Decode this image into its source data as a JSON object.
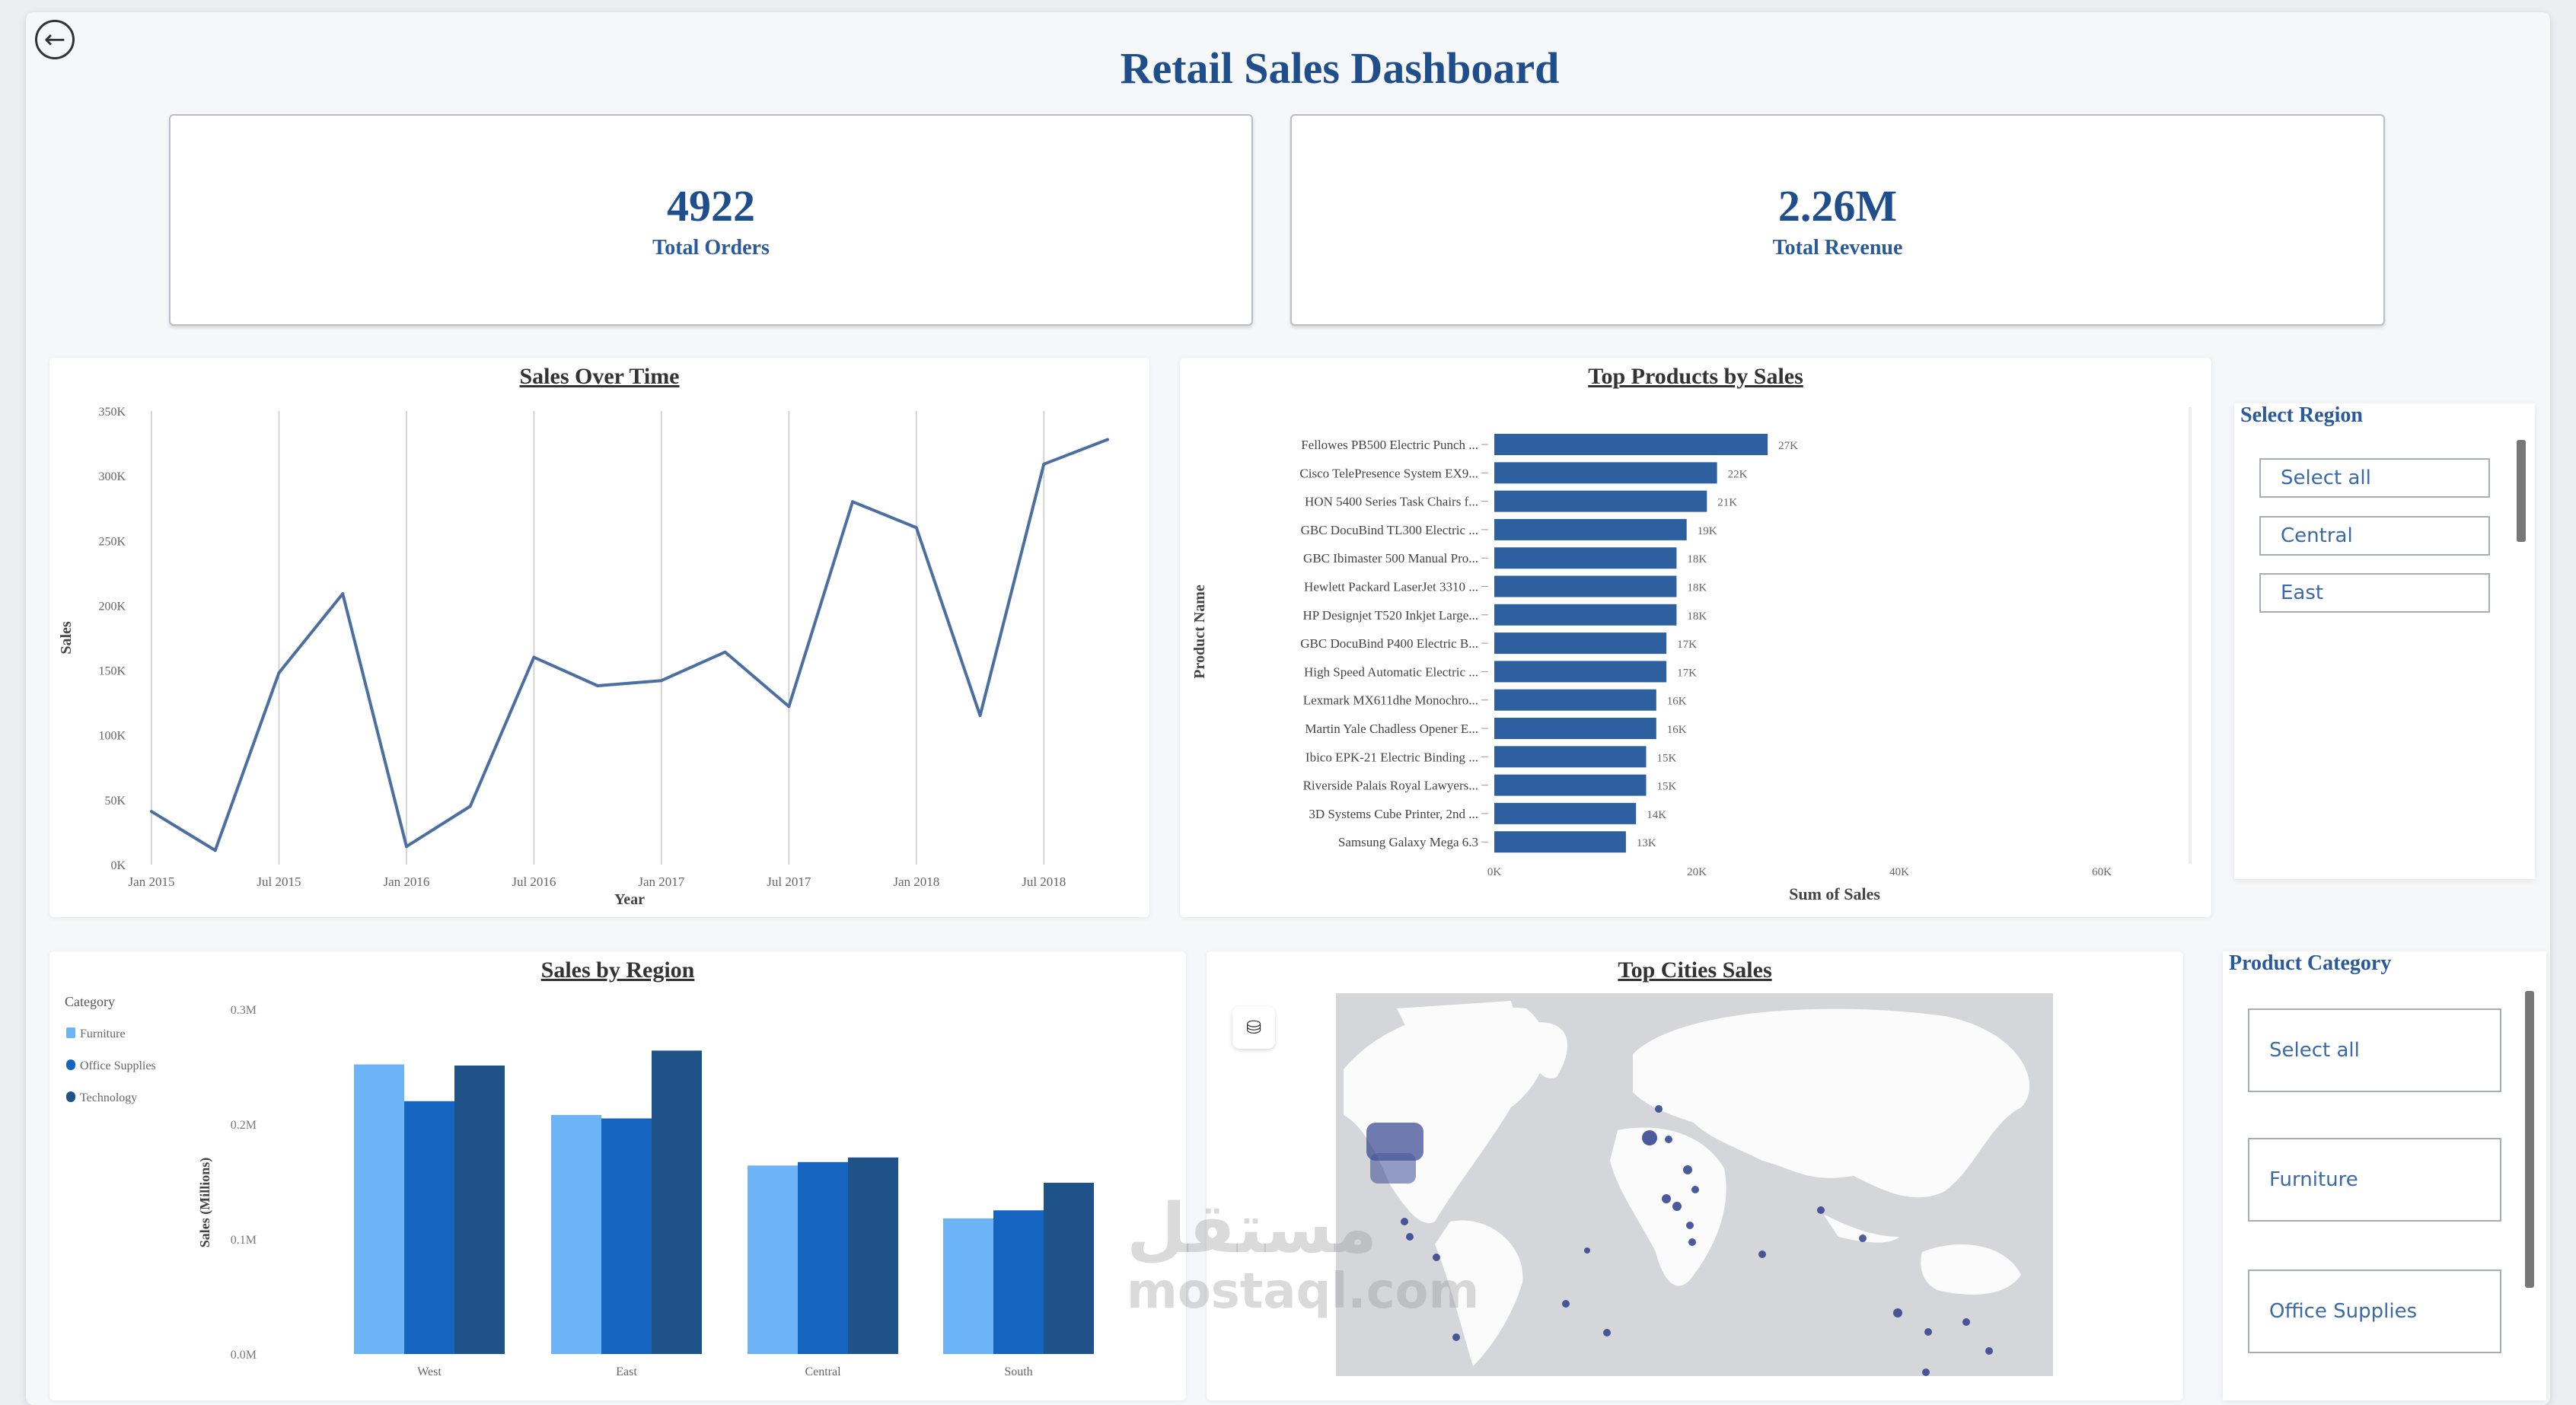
{
  "header": {
    "title": "Retail Sales Dashboard",
    "back_icon": "back-arrow-icon"
  },
  "kpis": [
    {
      "value": "4922",
      "label": "Total Orders"
    },
    {
      "value": "2.26M",
      "label": "Total Revenue"
    }
  ],
  "colors": {
    "accent": "#1f4e8c",
    "line": "#4a6fa0",
    "bar": "#2e5f9e",
    "furniture": "#6cb4f5",
    "office_supplies": "#1565c0",
    "technology": "#1f5288"
  },
  "slicers": {
    "region": {
      "title": "Select Region",
      "items": [
        "Select all",
        "Central",
        "East"
      ]
    },
    "category": {
      "title": "Product Category",
      "items": [
        "Select all",
        "Furniture",
        "Office Supplies"
      ]
    }
  },
  "map": {
    "title": "Top Cities Sales",
    "icon": "map-layer-icon"
  },
  "watermark": {
    "text": "mostaql.com",
    "arabic": "مستقل"
  },
  "chart_data": [
    {
      "type": "line",
      "title": "Sales Over Time",
      "xlabel": "Year",
      "ylabel": "Sales",
      "x_ticks": [
        "Jan 2015",
        "Jul 2015",
        "Jan 2016",
        "Jul 2016",
        "Jan 2017",
        "Jul 2017",
        "Jan 2018",
        "Jul 2018"
      ],
      "y_ticks": [
        "0K",
        "50K",
        "100K",
        "150K",
        "200K",
        "250K",
        "300K",
        "350K"
      ],
      "ylim": [
        0,
        350000
      ],
      "grid": "vertical",
      "x": [
        "2015-01",
        "2015-04",
        "2015-07",
        "2015-10",
        "2016-01",
        "2016-04",
        "2016-07",
        "2016-10",
        "2017-01",
        "2017-04",
        "2017-07",
        "2017-10",
        "2018-01",
        "2018-04",
        "2018-07",
        "2018-10"
      ],
      "values": [
        41000,
        11000,
        148000,
        209000,
        14000,
        45000,
        160000,
        138000,
        142000,
        164000,
        122000,
        280000,
        260000,
        115000,
        309000,
        328000
      ]
    },
    {
      "type": "bar",
      "orientation": "horizontal",
      "title": "Top Products by Sales",
      "xlabel": "Sum of Sales",
      "ylabel": "Product Name",
      "x_ticks": [
        "0K",
        "20K",
        "40K",
        "60K"
      ],
      "xlim": [
        0,
        60000
      ],
      "categories": [
        "Fellowes PB500 Electric Punch ...",
        "Cisco TelePresence System EX9...",
        "HON 5400 Series Task Chairs f...",
        "GBC DocuBind TL300 Electric ...",
        "GBC Ibimaster 500 Manual Pro...",
        "Hewlett Packard LaserJet 3310 ...",
        "HP Designjet T520 Inkjet Large...",
        "GBC DocuBind P400 Electric B...",
        "High Speed Automatic Electric ...",
        "Lexmark MX611dhe Monochro...",
        "Martin Yale Chadless Opener E...",
        "Ibico EPK-21 Electric Binding ...",
        "Riverside Palais Royal Lawyers...",
        "3D Systems Cube Printer, 2nd ...",
        "Samsung Galaxy Mega 6.3"
      ],
      "values": [
        27000,
        22000,
        21000,
        19000,
        18000,
        18000,
        18000,
        17000,
        17000,
        16000,
        16000,
        15000,
        15000,
        14000,
        13000
      ],
      "data_labels": [
        "27K",
        "22K",
        "21K",
        "19K",
        "18K",
        "18K",
        "18K",
        "17K",
        "17K",
        "16K",
        "16K",
        "15K",
        "15K",
        "14K",
        "13K"
      ]
    },
    {
      "type": "bar",
      "title": "Sales by Region",
      "ylabel": "Sales (Millions)",
      "legend_title": "Category",
      "legend": "left",
      "categories": [
        "West",
        "East",
        "Central",
        "South"
      ],
      "y_ticks": [
        "0.0M",
        "0.1M",
        "0.2M",
        "0.3M"
      ],
      "ylim": [
        0,
        0.3
      ],
      "series": [
        {
          "name": "Furniture",
          "values": [
            0.252,
            0.208,
            0.164,
            0.118
          ]
        },
        {
          "name": "Office Supplies",
          "values": [
            0.22,
            0.205,
            0.167,
            0.125
          ]
        },
        {
          "name": "Technology",
          "values": [
            0.251,
            0.264,
            0.171,
            0.149
          ]
        }
      ]
    }
  ]
}
